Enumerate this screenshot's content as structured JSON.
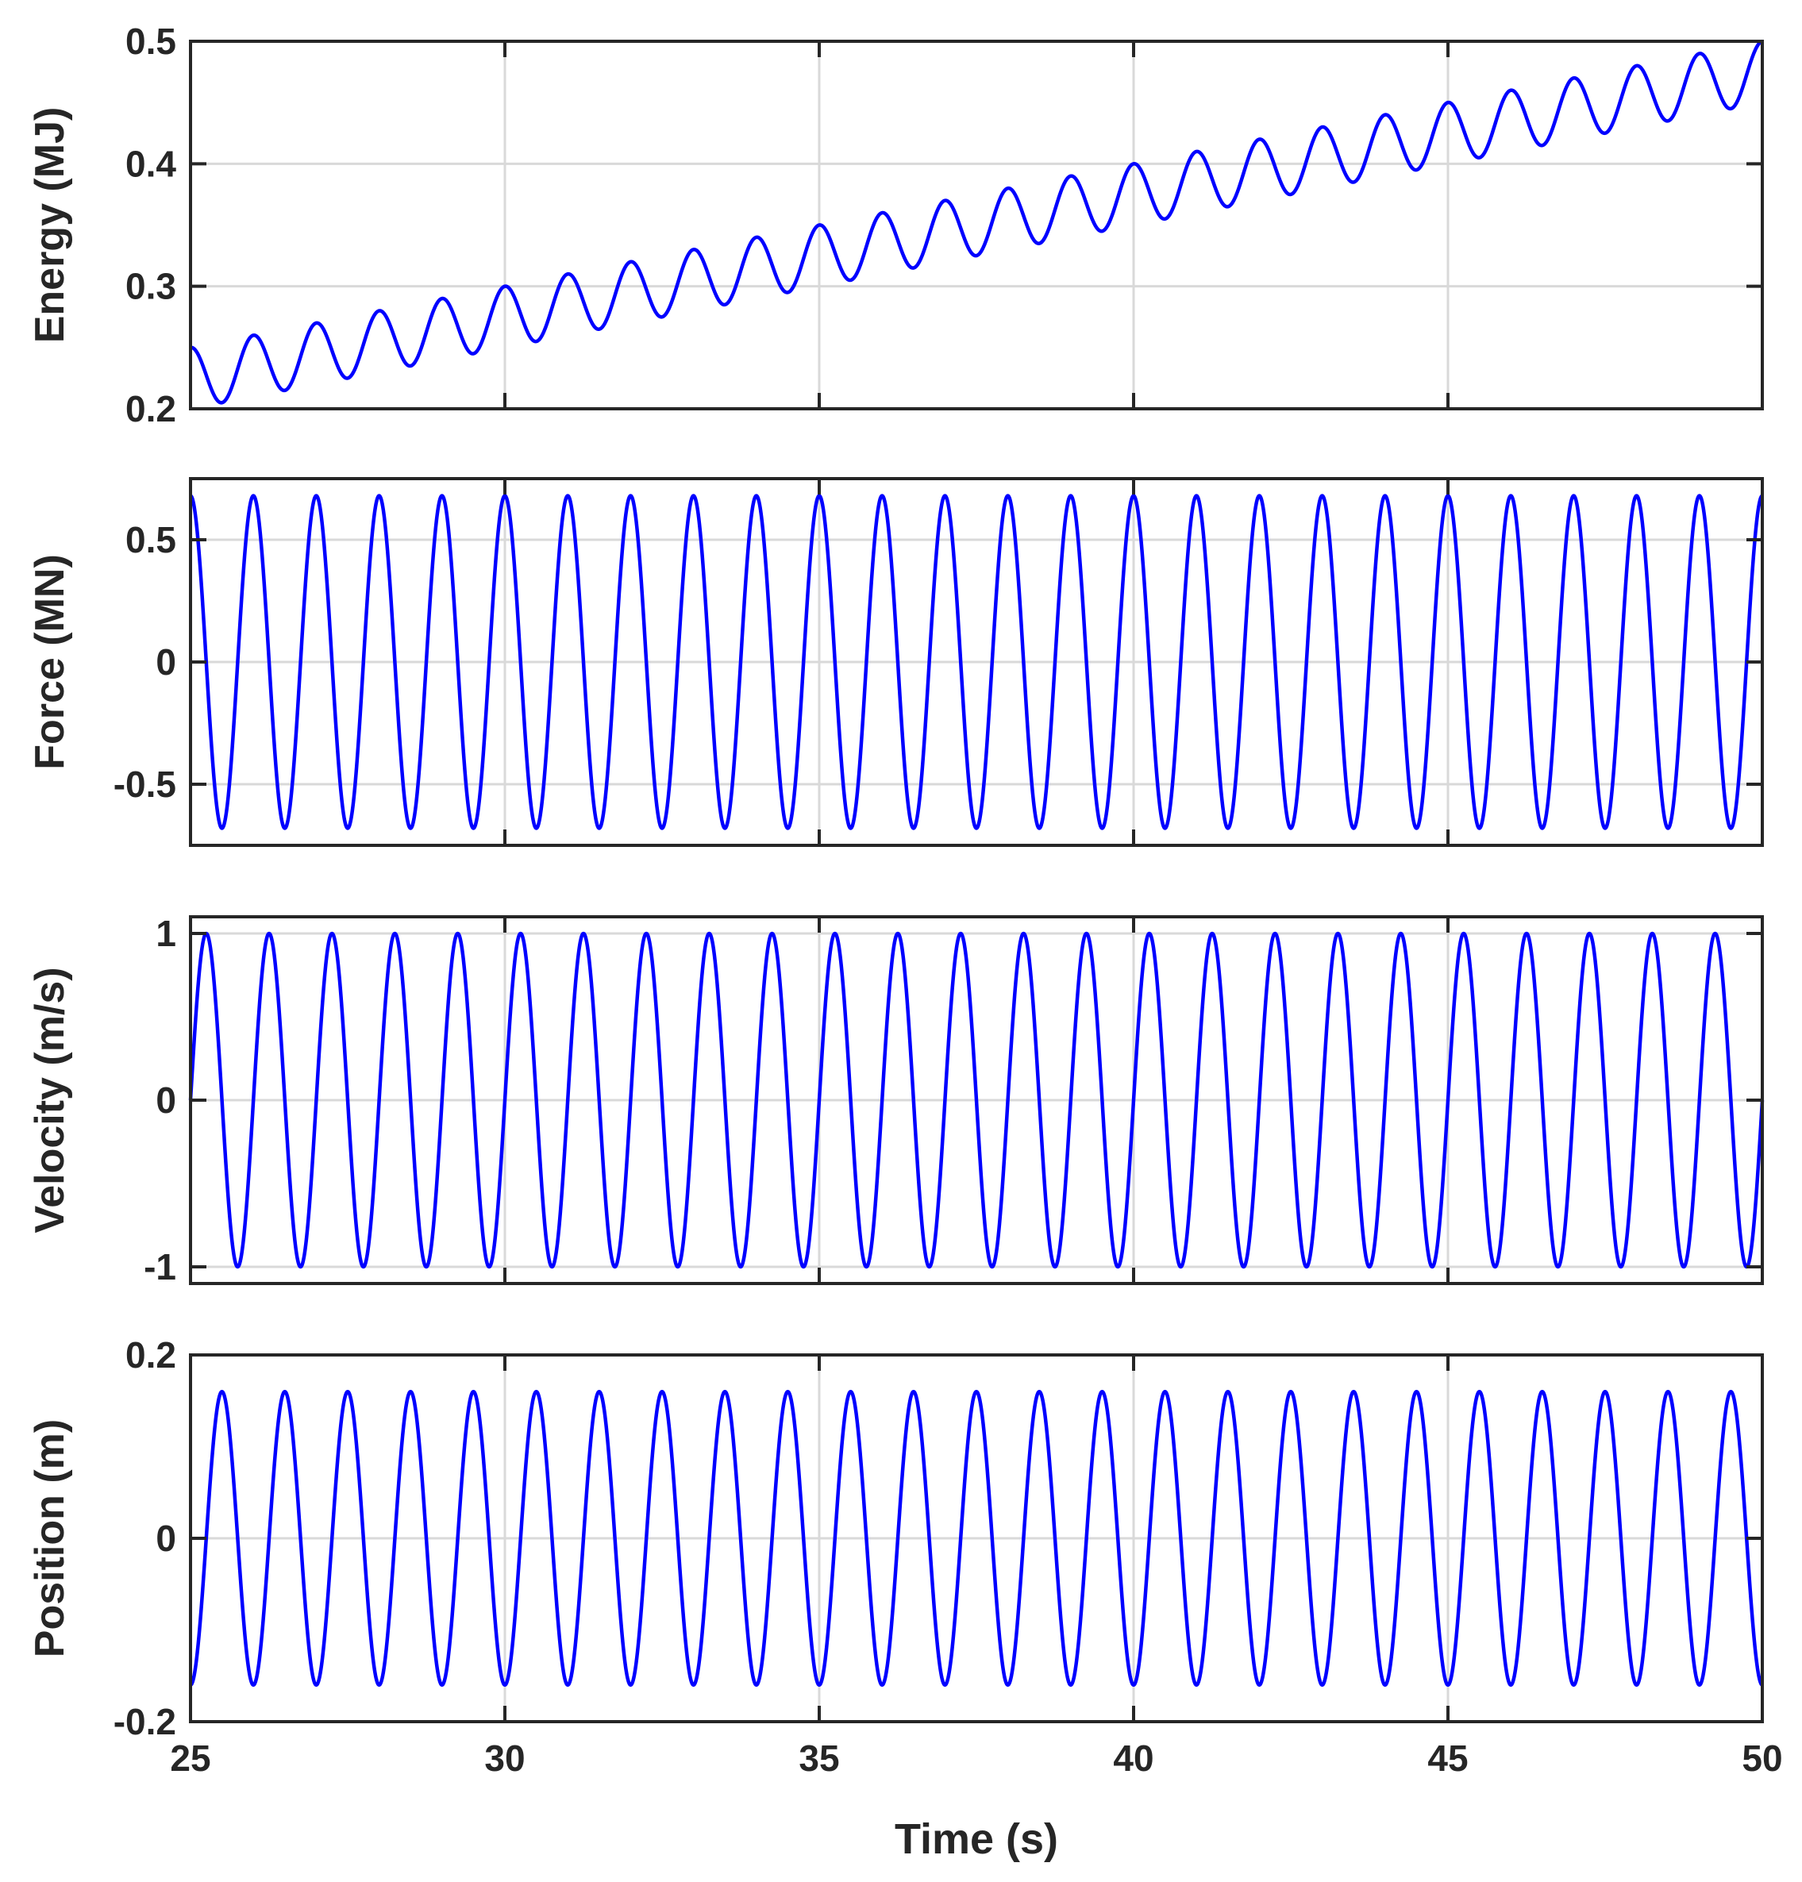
{
  "chart_data": [
    {
      "type": "line",
      "ylabel": "Energy (MJ)",
      "xlim": [
        25,
        50
      ],
      "ylim": [
        0.2,
        0.5
      ],
      "xticks": [
        25,
        30,
        35,
        40,
        45,
        50
      ],
      "yticks": [
        0.2,
        0.3,
        0.4,
        0.5
      ],
      "ytick_labels": [
        "0.2",
        "0.3",
        "0.4",
        "0.5"
      ],
      "grid": true,
      "color": "#0000ff",
      "series": [
        {
          "name": "Energy",
          "trend": {
            "start": [
              25,
              0.225
            ],
            "end": [
              50,
              0.475
            ]
          },
          "amplitude": 0.025,
          "period": 1.0,
          "phase_offset": 0.25
        }
      ]
    },
    {
      "type": "line",
      "ylabel": "Force (MN)",
      "xlim": [
        25,
        50
      ],
      "ylim": [
        -0.75,
        0.75
      ],
      "xticks": [
        25,
        30,
        35,
        40,
        45,
        50
      ],
      "yticks": [
        -0.5,
        0,
        0.5
      ],
      "ytick_labels": [
        "-0.5",
        "0",
        "0.5"
      ],
      "grid": true,
      "color": "#0000ff",
      "series": [
        {
          "name": "Force",
          "amplitude": 0.68,
          "period": 1.0,
          "phase_offset": 0.25,
          "wave": "sin"
        }
      ]
    },
    {
      "type": "line",
      "ylabel": "Velocity (m/s)",
      "xlim": [
        25,
        50
      ],
      "ylim": [
        -1.1,
        1.1
      ],
      "xticks": [
        25,
        30,
        35,
        40,
        45,
        50
      ],
      "yticks": [
        -1,
        0,
        1
      ],
      "ytick_labels": [
        "-1",
        "0",
        "1"
      ],
      "grid": true,
      "color": "#0000ff",
      "series": [
        {
          "name": "Velocity",
          "amplitude": 1.0,
          "period": 1.0,
          "phase_offset": 0,
          "wave": "sin"
        }
      ]
    },
    {
      "type": "line",
      "ylabel": "Position (m)",
      "xlabel": "Time (s)",
      "xlim": [
        25,
        50
      ],
      "ylim": [
        -0.2,
        0.2
      ],
      "xticks": [
        25,
        30,
        35,
        40,
        45,
        50
      ],
      "xtick_labels": [
        "25",
        "30",
        "35",
        "40",
        "45",
        "50"
      ],
      "yticks": [
        -0.2,
        0,
        0.2
      ],
      "ytick_labels": [
        "-0.2",
        "0",
        "0.2"
      ],
      "grid": true,
      "color": "#0000ff",
      "series": [
        {
          "name": "Position",
          "amplitude": 0.16,
          "period": 1.0,
          "phase_offset": -0.25,
          "wave": "sin"
        }
      ]
    }
  ]
}
